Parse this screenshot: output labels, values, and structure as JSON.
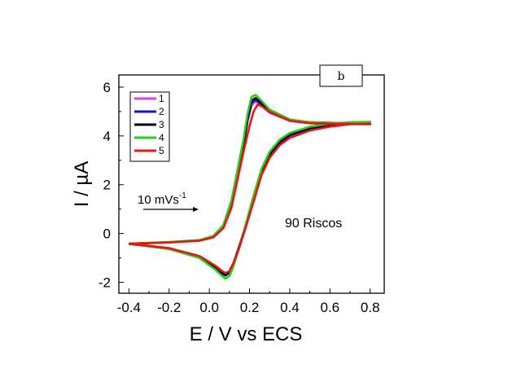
{
  "chart_data": {
    "type": "line",
    "title": "",
    "xlabel": "E / V vs ECS",
    "ylabel": "I / µA",
    "xlim": [
      -0.45,
      0.87
    ],
    "ylim": [
      -2.45,
      6.5
    ],
    "xticks": [
      -0.4,
      -0.2,
      0.0,
      0.2,
      0.4,
      0.6,
      0.8
    ],
    "xtick_labels": [
      "-0.4",
      "-0.2",
      "0.0",
      "0.2",
      "0.4",
      "0.6",
      "0.8"
    ],
    "yticks": [
      -2,
      0,
      2,
      4,
      6
    ],
    "ytick_labels": [
      "-2",
      "0",
      "2",
      "4",
      "6"
    ],
    "grid": false,
    "legend_position": "top-left",
    "panel_label": "b",
    "scan_rate_label": "10 mVs",
    "scan_rate_superscript": "-1",
    "annotation": "90 Riscos",
    "series": [
      {
        "name": "1",
        "color": "#e040e0",
        "forward": [
          [
            -0.4,
            -0.42
          ],
          [
            -0.2,
            -0.36
          ],
          [
            -0.05,
            -0.28
          ],
          [
            0.02,
            -0.12
          ],
          [
            0.07,
            0.3
          ],
          [
            0.11,
            1.2
          ],
          [
            0.14,
            2.4
          ],
          [
            0.17,
            3.6
          ],
          [
            0.19,
            4.6
          ],
          [
            0.21,
            5.25
          ],
          [
            0.23,
            5.42
          ],
          [
            0.25,
            5.3
          ],
          [
            0.3,
            4.95
          ],
          [
            0.4,
            4.62
          ],
          [
            0.5,
            4.52
          ],
          [
            0.6,
            4.5
          ],
          [
            0.7,
            4.49
          ],
          [
            0.8,
            4.48
          ]
        ],
        "reverse": [
          [
            0.8,
            4.52
          ],
          [
            0.7,
            4.5
          ],
          [
            0.6,
            4.42
          ],
          [
            0.5,
            4.28
          ],
          [
            0.4,
            4.0
          ],
          [
            0.35,
            3.7
          ],
          [
            0.3,
            3.2
          ],
          [
            0.26,
            2.5
          ],
          [
            0.22,
            1.4
          ],
          [
            0.18,
            0.3
          ],
          [
            0.15,
            -0.5
          ],
          [
            0.12,
            -1.2
          ],
          [
            0.1,
            -1.55
          ],
          [
            0.08,
            -1.65
          ],
          [
            0.06,
            -1.55
          ],
          [
            0.03,
            -1.35
          ],
          [
            -0.05,
            -0.95
          ],
          [
            -0.2,
            -0.62
          ],
          [
            -0.4,
            -0.42
          ]
        ]
      },
      {
        "name": "2",
        "color": "#1010e0",
        "forward": [
          [
            -0.4,
            -0.42
          ],
          [
            -0.2,
            -0.36
          ],
          [
            -0.05,
            -0.28
          ],
          [
            0.02,
            -0.12
          ],
          [
            0.07,
            0.3
          ],
          [
            0.11,
            1.2
          ],
          [
            0.14,
            2.4
          ],
          [
            0.17,
            3.6
          ],
          [
            0.19,
            4.65
          ],
          [
            0.21,
            5.35
          ],
          [
            0.23,
            5.48
          ],
          [
            0.25,
            5.35
          ],
          [
            0.3,
            4.98
          ],
          [
            0.4,
            4.64
          ],
          [
            0.5,
            4.54
          ],
          [
            0.6,
            4.52
          ],
          [
            0.7,
            4.51
          ],
          [
            0.8,
            4.5
          ]
        ],
        "reverse": [
          [
            0.8,
            4.54
          ],
          [
            0.7,
            4.52
          ],
          [
            0.6,
            4.44
          ],
          [
            0.5,
            4.3
          ],
          [
            0.4,
            4.02
          ],
          [
            0.35,
            3.72
          ],
          [
            0.3,
            3.22
          ],
          [
            0.26,
            2.52
          ],
          [
            0.22,
            1.42
          ],
          [
            0.18,
            0.3
          ],
          [
            0.15,
            -0.5
          ],
          [
            0.12,
            -1.22
          ],
          [
            0.1,
            -1.58
          ],
          [
            0.08,
            -1.68
          ],
          [
            0.06,
            -1.58
          ],
          [
            0.03,
            -1.37
          ],
          [
            -0.05,
            -0.96
          ],
          [
            -0.2,
            -0.62
          ],
          [
            -0.4,
            -0.42
          ]
        ]
      },
      {
        "name": "3",
        "color": "#000000",
        "forward": [
          [
            -0.4,
            -0.42
          ],
          [
            -0.2,
            -0.36
          ],
          [
            -0.05,
            -0.28
          ],
          [
            0.02,
            -0.12
          ],
          [
            0.07,
            0.3
          ],
          [
            0.11,
            1.2
          ],
          [
            0.14,
            2.4
          ],
          [
            0.17,
            3.6
          ],
          [
            0.19,
            4.7
          ],
          [
            0.21,
            5.45
          ],
          [
            0.23,
            5.55
          ],
          [
            0.25,
            5.42
          ],
          [
            0.3,
            5.02
          ],
          [
            0.4,
            4.66
          ],
          [
            0.5,
            4.56
          ],
          [
            0.6,
            4.54
          ],
          [
            0.7,
            4.53
          ],
          [
            0.8,
            4.52
          ]
        ],
        "reverse": [
          [
            0.8,
            4.56
          ],
          [
            0.7,
            4.54
          ],
          [
            0.6,
            4.46
          ],
          [
            0.5,
            4.32
          ],
          [
            0.4,
            4.05
          ],
          [
            0.35,
            3.75
          ],
          [
            0.3,
            3.25
          ],
          [
            0.26,
            2.55
          ],
          [
            0.22,
            1.45
          ],
          [
            0.18,
            0.3
          ],
          [
            0.15,
            -0.5
          ],
          [
            0.12,
            -1.25
          ],
          [
            0.1,
            -1.62
          ],
          [
            0.08,
            -1.72
          ],
          [
            0.06,
            -1.62
          ],
          [
            0.03,
            -1.4
          ],
          [
            -0.05,
            -0.97
          ],
          [
            -0.2,
            -0.63
          ],
          [
            -0.4,
            -0.42
          ]
        ]
      },
      {
        "name": "4",
        "color": "#20d020",
        "forward": [
          [
            -0.4,
            -0.42
          ],
          [
            -0.2,
            -0.35
          ],
          [
            -0.05,
            -0.27
          ],
          [
            0.02,
            -0.1
          ],
          [
            0.07,
            0.35
          ],
          [
            0.11,
            1.35
          ],
          [
            0.14,
            2.6
          ],
          [
            0.17,
            3.85
          ],
          [
            0.19,
            4.9
          ],
          [
            0.21,
            5.6
          ],
          [
            0.23,
            5.68
          ],
          [
            0.25,
            5.52
          ],
          [
            0.3,
            5.08
          ],
          [
            0.4,
            4.68
          ],
          [
            0.5,
            4.56
          ],
          [
            0.6,
            4.54
          ],
          [
            0.7,
            4.53
          ],
          [
            0.8,
            4.52
          ]
        ],
        "reverse": [
          [
            0.8,
            4.58
          ],
          [
            0.7,
            4.56
          ],
          [
            0.6,
            4.5
          ],
          [
            0.5,
            4.38
          ],
          [
            0.4,
            4.12
          ],
          [
            0.35,
            3.85
          ],
          [
            0.3,
            3.35
          ],
          [
            0.26,
            2.65
          ],
          [
            0.22,
            1.55
          ],
          [
            0.18,
            0.35
          ],
          [
            0.15,
            -0.55
          ],
          [
            0.12,
            -1.35
          ],
          [
            0.1,
            -1.75
          ],
          [
            0.08,
            -1.85
          ],
          [
            0.06,
            -1.72
          ],
          [
            0.03,
            -1.48
          ],
          [
            -0.05,
            -1.0
          ],
          [
            -0.2,
            -0.64
          ],
          [
            -0.4,
            -0.42
          ]
        ]
      },
      {
        "name": "5",
        "color": "#f01010",
        "forward": [
          [
            -0.4,
            -0.42
          ],
          [
            -0.2,
            -0.37
          ],
          [
            -0.05,
            -0.3
          ],
          [
            0.02,
            -0.16
          ],
          [
            0.07,
            0.22
          ],
          [
            0.11,
            1.05
          ],
          [
            0.14,
            2.2
          ],
          [
            0.17,
            3.35
          ],
          [
            0.2,
            4.4
          ],
          [
            0.22,
            5.0
          ],
          [
            0.24,
            5.28
          ],
          [
            0.26,
            5.22
          ],
          [
            0.3,
            4.98
          ],
          [
            0.4,
            4.62
          ],
          [
            0.5,
            4.52
          ],
          [
            0.6,
            4.5
          ],
          [
            0.7,
            4.49
          ],
          [
            0.8,
            4.48
          ]
        ],
        "reverse": [
          [
            0.8,
            4.5
          ],
          [
            0.7,
            4.48
          ],
          [
            0.6,
            4.38
          ],
          [
            0.5,
            4.22
          ],
          [
            0.4,
            3.92
          ],
          [
            0.35,
            3.62
          ],
          [
            0.3,
            3.1
          ],
          [
            0.26,
            2.4
          ],
          [
            0.22,
            1.3
          ],
          [
            0.18,
            0.22
          ],
          [
            0.15,
            -0.55
          ],
          [
            0.12,
            -1.2
          ],
          [
            0.1,
            -1.55
          ],
          [
            0.08,
            -1.62
          ],
          [
            0.06,
            -1.52
          ],
          [
            0.03,
            -1.32
          ],
          [
            -0.05,
            -0.92
          ],
          [
            -0.2,
            -0.6
          ],
          [
            -0.4,
            -0.42
          ]
        ]
      }
    ]
  }
}
